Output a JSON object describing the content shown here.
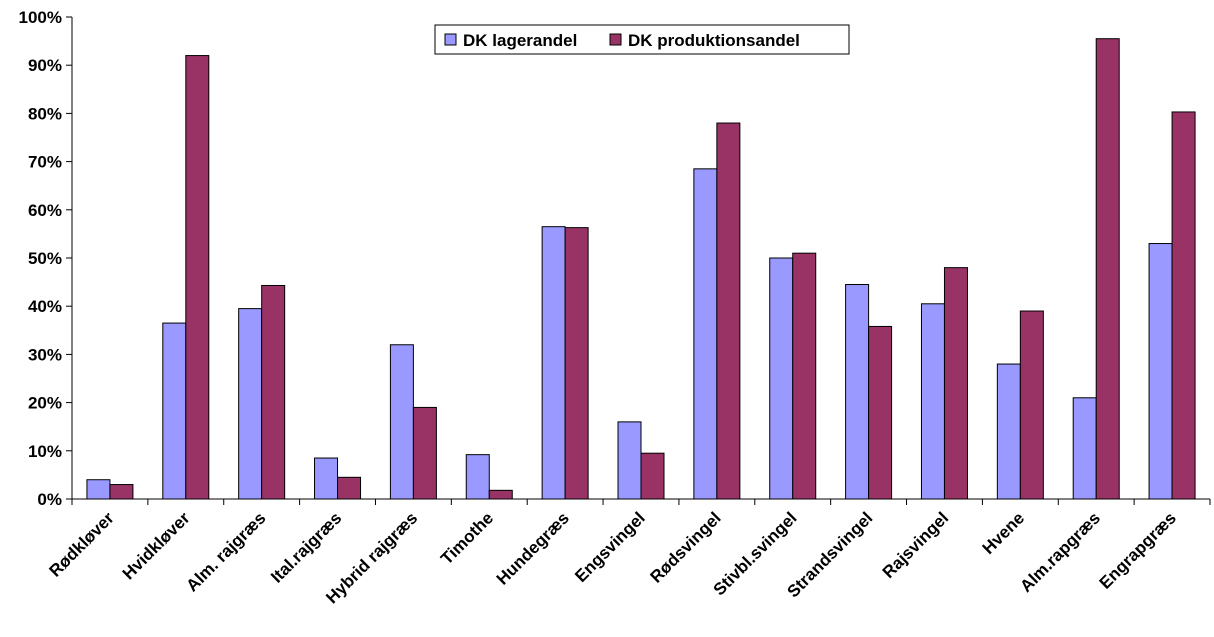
{
  "chart_data": {
    "type": "bar",
    "categories": [
      "Rødkløver",
      "Hvidkløver",
      "Alm. rajgræs",
      "Ital.rajgræs",
      "Hybrid rajgræs",
      "Timothe",
      "Hundegræs",
      "Engsvingel",
      "Rødsvingel",
      "Stivbl.svingel",
      "Strandsvingel",
      "Rajsvingel",
      "Hvene",
      "Alm.rapgræs",
      "Engrapgræs"
    ],
    "series": [
      {
        "name": "DK lagerandel",
        "color": "#9999ff",
        "values": [
          4,
          36.5,
          39.5,
          8.5,
          32,
          9.2,
          56.5,
          16,
          68.5,
          50,
          44.5,
          40.5,
          28,
          21,
          53
        ]
      },
      {
        "name": "DK produktionsandel",
        "color": "#993366",
        "values": [
          3,
          92,
          44.3,
          4.5,
          19,
          1.8,
          56.3,
          9.5,
          78,
          51,
          35.8,
          48,
          39,
          95.5,
          80.3
        ]
      }
    ],
    "ylim": [
      0,
      100
    ],
    "yticks": [
      "0%",
      "10%",
      "20%",
      "30%",
      "40%",
      "50%",
      "60%",
      "70%",
      "80%",
      "90%",
      "100%"
    ],
    "grid": false,
    "legend_position": "top-center",
    "title": "",
    "xlabel": "",
    "ylabel": ""
  }
}
